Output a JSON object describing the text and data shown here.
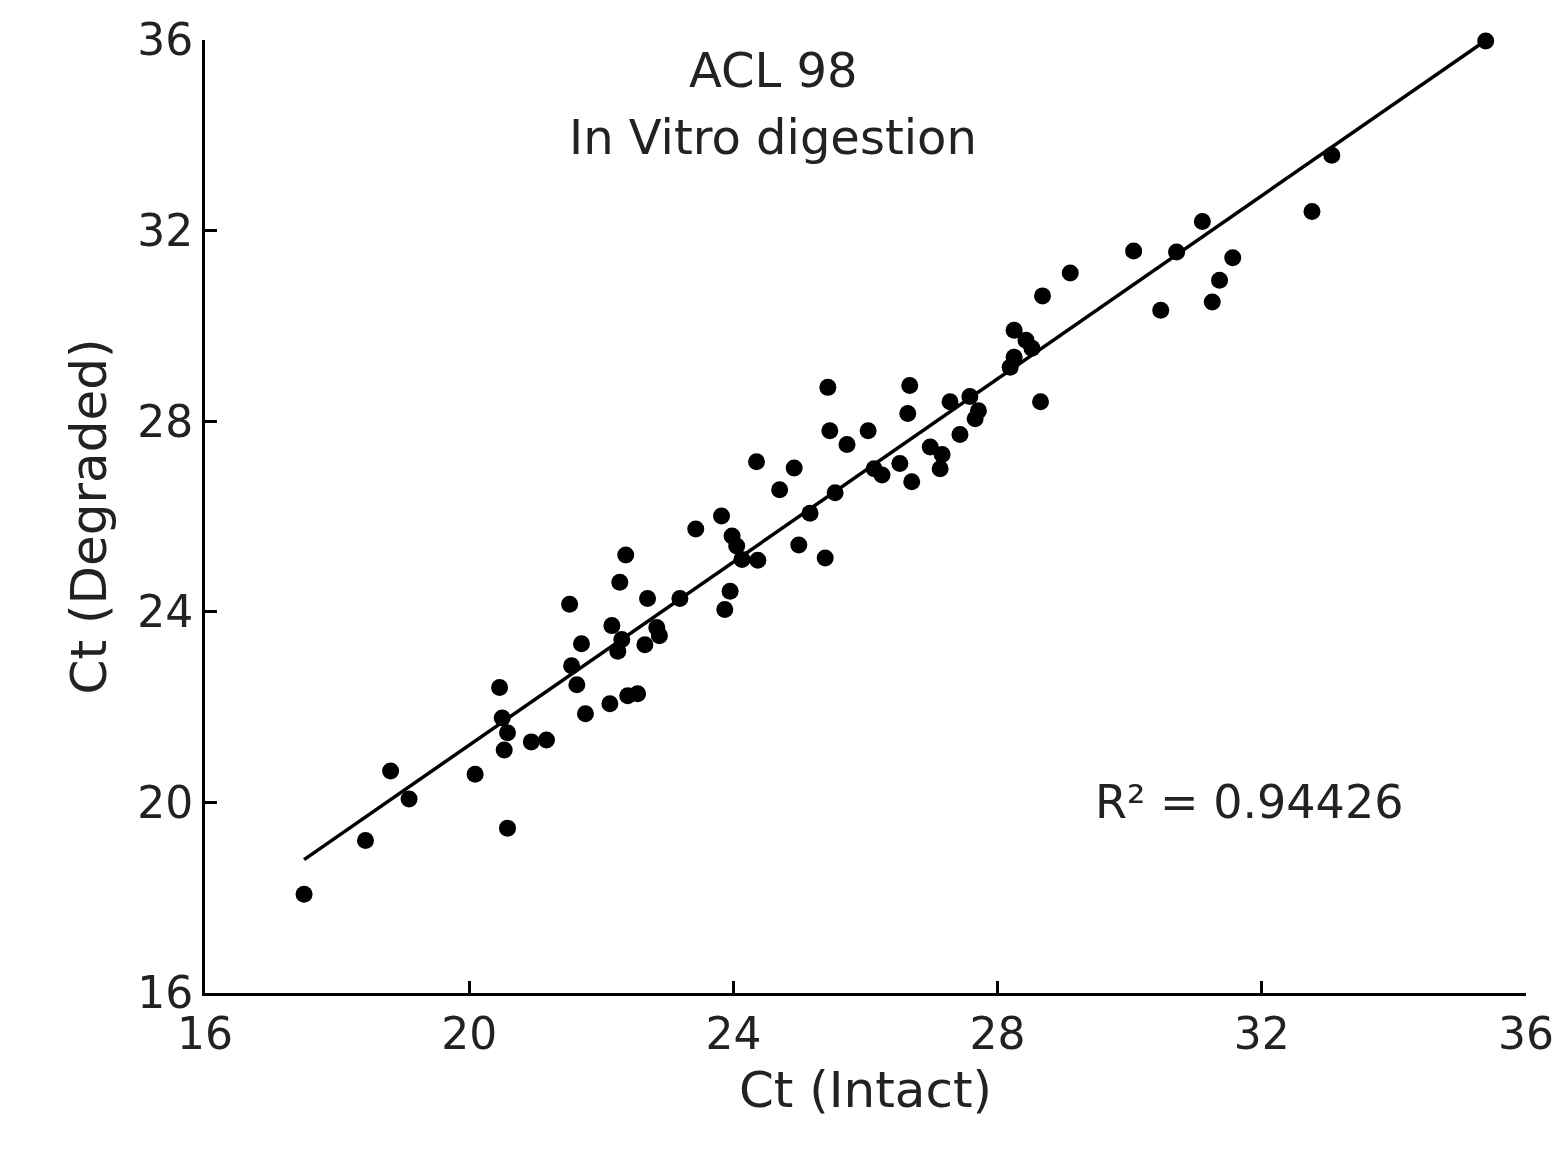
{
  "chart_data": {
    "type": "scatter",
    "title": "ACL 98",
    "subtitle": "In Vitro digestion",
    "xlabel": "Ct (Intact)",
    "ylabel": "Ct (Degraded)",
    "xlim": [
      16,
      36
    ],
    "xticks": [
      16,
      20,
      24,
      28,
      32,
      36
    ],
    "ylim": [
      16,
      36
    ],
    "yticks": [
      16,
      20,
      24,
      28,
      32,
      36
    ],
    "marker": "circle",
    "series": [
      {
        "color": "#000000",
        "x": [
          17.5,
          18.43,
          18.81,
          19.09,
          20.09,
          20.58,
          20.46,
          20.5,
          20.58,
          20.53,
          20.94,
          21.17,
          21.52,
          21.55,
          21.63,
          21.7,
          21.76,
          22.13,
          22.16,
          22.28,
          22.37,
          22.25,
          22.31,
          22.4,
          22.55,
          22.7,
          22.66,
          22.84,
          22.88,
          23.19,
          23.43,
          23.82,
          23.87,
          23.95,
          23.98,
          24.05,
          24.13,
          24.37,
          24.35,
          24.7,
          24.92,
          24.99,
          25.16,
          25.39,
          25.43,
          25.46,
          25.54,
          25.72,
          26.04,
          26.13,
          26.25,
          26.52,
          26.67,
          26.64,
          26.7,
          26.98,
          27.13,
          27.16,
          27.28,
          27.43,
          27.58,
          27.66,
          27.71,
          28.19,
          28.25,
          28.25,
          28.43,
          28.52,
          28.65,
          28.68,
          29.1,
          30.06,
          30.47,
          30.71,
          31.1,
          31.25,
          31.36,
          31.56,
          32.76,
          33.06,
          35.39
        ],
        "values": [
          18.07,
          19.2,
          20.66,
          20.07,
          20.59,
          19.46,
          22.41,
          21.77,
          21.46,
          21.1,
          21.27,
          21.31,
          24.16,
          22.87,
          22.47,
          23.33,
          21.86,
          22.07,
          23.71,
          24.62,
          25.19,
          23.17,
          23.42,
          22.24,
          22.28,
          24.28,
          23.31,
          23.67,
          23.5,
          24.28,
          25.74,
          26.01,
          24.05,
          24.43,
          25.59,
          25.38,
          25.1,
          25.08,
          27.15,
          26.56,
          27.02,
          25.4,
          26.07,
          25.13,
          28.71,
          27.8,
          26.5,
          27.51,
          27.8,
          27.0,
          26.87,
          27.11,
          28.75,
          28.16,
          26.73,
          27.46,
          27.0,
          27.3,
          28.41,
          27.72,
          28.52,
          28.05,
          28.22,
          29.13,
          29.91,
          29.34,
          29.7,
          29.53,
          28.41,
          30.63,
          31.11,
          31.57,
          30.33,
          31.55,
          32.19,
          30.5,
          30.96,
          31.43,
          32.4,
          33.58,
          35.98
        ]
      },
      {
        "type": "line",
        "color": "#000000",
        "marker": "none",
        "line_style": "solid",
        "x": [
          17.5,
          35.4
        ],
        "values": [
          18.8,
          36.0
        ]
      }
    ],
    "annotations": [
      "R² = 0.94426"
    ]
  }
}
